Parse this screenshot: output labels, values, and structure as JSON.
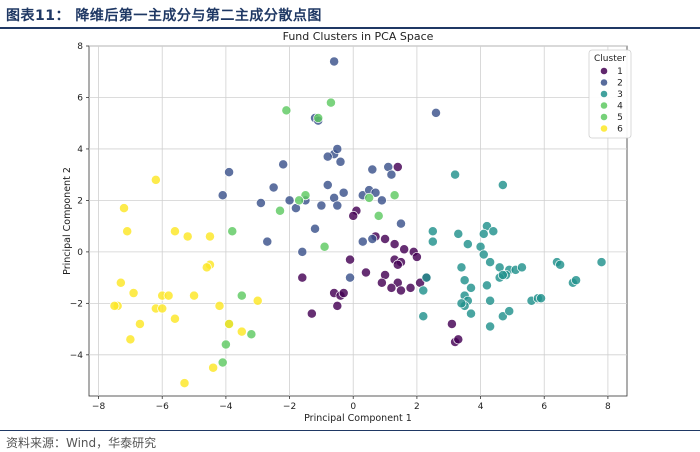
{
  "figure_caption": "图表11：   降维后第一主成分与第二主成分散点图",
  "source_note": "资料来源：Wind，华泰研究",
  "chart_data": {
    "type": "scatter",
    "title": "Fund Clusters in PCA Space",
    "xlabel": "Principal Component 1",
    "ylabel": "Principal Component 2",
    "xlim": [
      -8.3,
      8.6
    ],
    "ylim": [
      -5.6,
      8.0
    ],
    "xticks": [
      -8,
      -6,
      -4,
      -2,
      0,
      2,
      4,
      6,
      8
    ],
    "yticks": [
      -4,
      -2,
      0,
      2,
      4,
      6,
      8
    ],
    "grid": true,
    "legend": {
      "title": "Cluster",
      "placement": "top-right"
    },
    "series": [
      {
        "name": "1",
        "color": "#440154",
        "points": [
          [
            1.4,
            3.3
          ],
          [
            0.1,
            1.6
          ],
          [
            0.0,
            1.4
          ],
          [
            0.7,
            0.6
          ],
          [
            1.0,
            0.5
          ],
          [
            1.3,
            0.3
          ],
          [
            1.6,
            0.1
          ],
          [
            1.9,
            0.0
          ],
          [
            2.0,
            -0.2
          ],
          [
            1.3,
            -0.3
          ],
          [
            1.5,
            -0.4
          ],
          [
            1.4,
            -0.5
          ],
          [
            1.0,
            -0.9
          ],
          [
            1.4,
            -1.2
          ],
          [
            1.2,
            -1.4
          ],
          [
            0.9,
            -1.2
          ],
          [
            1.8,
            -1.4
          ],
          [
            1.5,
            -1.5
          ],
          [
            -1.6,
            -1.0
          ],
          [
            -0.6,
            -1.6
          ],
          [
            -0.4,
            -1.7
          ],
          [
            -0.3,
            -1.6
          ],
          [
            -0.5,
            -2.1
          ],
          [
            -1.3,
            -2.4
          ],
          [
            -0.1,
            -0.3
          ],
          [
            0.4,
            -0.8
          ],
          [
            2.3,
            -1.0
          ],
          [
            2.1,
            -1.2
          ],
          [
            3.1,
            -2.8
          ],
          [
            3.2,
            -3.5
          ],
          [
            3.3,
            -3.4
          ]
        ]
      },
      {
        "name": "2",
        "color": "#3b528b",
        "points": [
          [
            -0.6,
            7.4
          ],
          [
            -1.2,
            5.2
          ],
          [
            -1.1,
            5.1
          ],
          [
            -0.6,
            3.8
          ],
          [
            -0.5,
            4.0
          ],
          [
            -0.4,
            3.5
          ],
          [
            -0.8,
            3.7
          ],
          [
            -2.2,
            3.4
          ],
          [
            -2.5,
            2.5
          ],
          [
            -2.9,
            1.9
          ],
          [
            -2.0,
            2.0
          ],
          [
            -1.5,
            2.0
          ],
          [
            -1.8,
            1.7
          ],
          [
            -1.0,
            1.8
          ],
          [
            -0.6,
            2.1
          ],
          [
            -0.5,
            1.8
          ],
          [
            -0.8,
            2.6
          ],
          [
            -0.3,
            2.3
          ],
          [
            0.3,
            2.2
          ],
          [
            0.5,
            2.4
          ],
          [
            0.7,
            2.3
          ],
          [
            0.9,
            2.0
          ],
          [
            0.6,
            3.2
          ],
          [
            1.1,
            3.3
          ],
          [
            1.2,
            3.0
          ],
          [
            1.5,
            1.1
          ],
          [
            0.6,
            0.5
          ],
          [
            0.3,
            0.4
          ],
          [
            -0.1,
            -1.0
          ],
          [
            -1.6,
            0.0
          ],
          [
            -2.7,
            0.4
          ],
          [
            -3.9,
            3.1
          ],
          [
            -4.1,
            2.2
          ],
          [
            2.6,
            5.4
          ],
          [
            -1.2,
            0.9
          ]
        ]
      },
      {
        "name": "3",
        "color": "#21918c",
        "points": [
          [
            3.2,
            3.0
          ],
          [
            4.7,
            2.6
          ],
          [
            4.2,
            1.0
          ],
          [
            4.1,
            0.7
          ],
          [
            4.4,
            0.8
          ],
          [
            3.3,
            0.7
          ],
          [
            2.5,
            0.8
          ],
          [
            2.5,
            0.4
          ],
          [
            3.6,
            0.3
          ],
          [
            4.0,
            0.2
          ],
          [
            4.1,
            -0.1
          ],
          [
            4.3,
            -0.4
          ],
          [
            4.6,
            -0.6
          ],
          [
            4.9,
            -0.7
          ],
          [
            4.8,
            -0.9
          ],
          [
            5.1,
            -0.7
          ],
          [
            5.3,
            -0.6
          ],
          [
            3.4,
            -0.6
          ],
          [
            3.5,
            -1.1
          ],
          [
            3.7,
            -1.4
          ],
          [
            4.2,
            -1.3
          ],
          [
            4.6,
            -1.0
          ],
          [
            4.7,
            -0.9
          ],
          [
            2.3,
            -1.0
          ],
          [
            2.2,
            -1.5
          ],
          [
            3.5,
            -1.7
          ],
          [
            3.6,
            -1.9
          ],
          [
            3.5,
            -2.1
          ],
          [
            3.4,
            -2.0
          ],
          [
            4.3,
            -1.9
          ],
          [
            4.7,
            -2.5
          ],
          [
            4.9,
            -2.3
          ],
          [
            4.3,
            -2.9
          ],
          [
            3.7,
            -2.4
          ],
          [
            2.2,
            -2.5
          ],
          [
            5.6,
            -1.9
          ],
          [
            5.8,
            -1.8
          ],
          [
            5.9,
            -1.8
          ],
          [
            6.4,
            -0.4
          ],
          [
            6.5,
            -0.5
          ],
          [
            6.9,
            -1.2
          ],
          [
            7.0,
            -1.1
          ],
          [
            7.8,
            -0.4
          ]
        ]
      },
      {
        "name": "4",
        "color": "#5ec962",
        "points": [
          [
            -2.1,
            5.5
          ],
          [
            -0.7,
            5.8
          ],
          [
            -1.5,
            2.2
          ],
          [
            -2.3,
            1.6
          ],
          [
            -0.9,
            0.2
          ],
          [
            -3.8,
            0.8
          ],
          [
            -3.2,
            -3.2
          ],
          [
            -4.0,
            -3.6
          ],
          [
            -4.1,
            -4.3
          ]
        ]
      },
      {
        "name": "5",
        "color": "#5ec962",
        "points": [
          [
            -1.1,
            5.2
          ],
          [
            -1.7,
            2.0
          ],
          [
            0.5,
            2.1
          ],
          [
            1.3,
            2.2
          ],
          [
            0.8,
            1.4
          ],
          [
            -3.5,
            -1.7
          ],
          [
            -3.9,
            -2.8
          ]
        ]
      },
      {
        "name": "6",
        "color": "#fde725",
        "points": [
          [
            -6.2,
            2.8
          ],
          [
            -7.2,
            1.7
          ],
          [
            -7.1,
            0.8
          ],
          [
            -5.6,
            0.8
          ],
          [
            -5.2,
            0.6
          ],
          [
            -4.5,
            0.6
          ],
          [
            -4.5,
            -0.5
          ],
          [
            -4.6,
            -0.6
          ],
          [
            -7.3,
            -1.2
          ],
          [
            -6.9,
            -1.6
          ],
          [
            -6.0,
            -1.7
          ],
          [
            -5.8,
            -1.7
          ],
          [
            -5.0,
            -1.7
          ],
          [
            -6.2,
            -2.2
          ],
          [
            -6.0,
            -2.2
          ],
          [
            -7.4,
            -2.1
          ],
          [
            -7.5,
            -2.1
          ],
          [
            -4.2,
            -2.1
          ],
          [
            -3.0,
            -1.9
          ],
          [
            -5.6,
            -2.6
          ],
          [
            -6.7,
            -2.8
          ],
          [
            -7.0,
            -3.4
          ],
          [
            -3.9,
            -2.8
          ],
          [
            -3.5,
            -3.1
          ],
          [
            -4.4,
            -4.5
          ],
          [
            -5.3,
            -5.1
          ]
        ]
      }
    ]
  }
}
